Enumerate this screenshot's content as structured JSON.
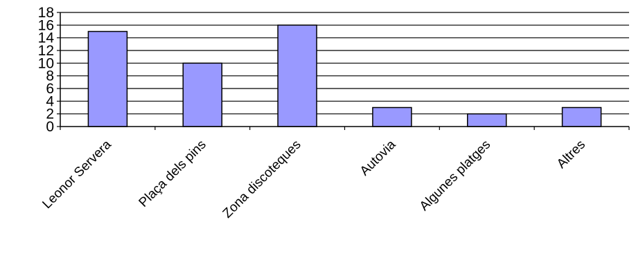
{
  "chart_data": {
    "type": "bar",
    "categories": [
      "Leonor Servera",
      "Plaça dels pins",
      "Zona discoteques",
      "Autovia",
      "Algunes platges",
      "Altres"
    ],
    "values": [
      15,
      10,
      16,
      3,
      2,
      3
    ],
    "ylim": [
      0,
      18
    ],
    "yticks": [
      0,
      2,
      4,
      6,
      8,
      10,
      12,
      14,
      16,
      18
    ],
    "ytick_labels": [
      "0",
      "2",
      "4",
      "6",
      "8",
      "10",
      "12",
      "14",
      "16",
      "18"
    ],
    "grid": true,
    "legend": "none",
    "colors": {
      "bar_fill": "#9999ff",
      "bar_stroke": "#000000",
      "grid": "#000000",
      "axis": "#000000",
      "background": "#ffffff"
    }
  }
}
